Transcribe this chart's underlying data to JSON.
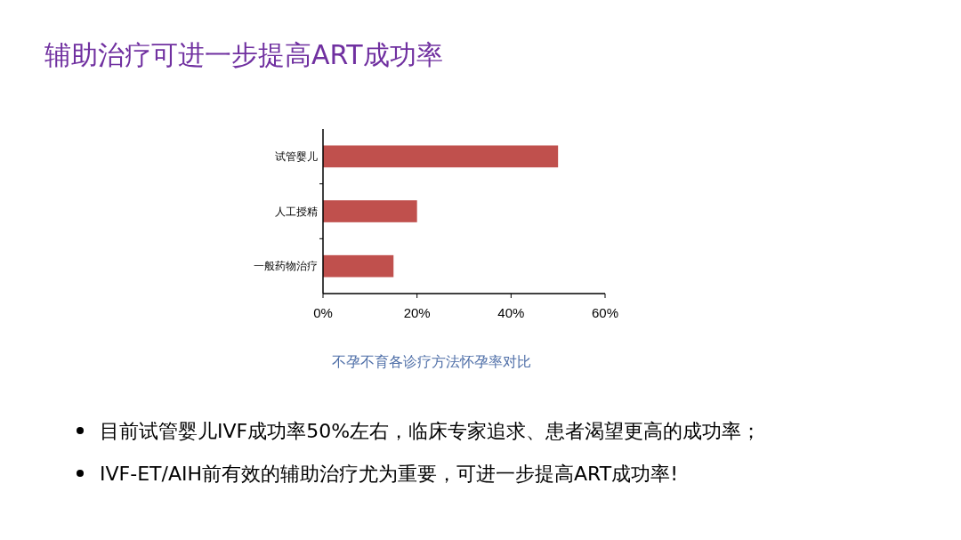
{
  "chart_data": {
    "type": "bar",
    "orientation": "horizontal",
    "title": "辅助治疗可进一步提高ART成功率",
    "categories": [
      "试管婴儿",
      "人工授精",
      "一般药物治疗"
    ],
    "values": [
      50,
      20,
      15
    ],
    "color": "#c0504d",
    "xlim": [
      0,
      60
    ],
    "xticks": [
      {
        "value": 0,
        "label": "0%"
      },
      {
        "value": 20,
        "label": "20%"
      },
      {
        "value": 40,
        "label": "40%"
      },
      {
        "value": 60,
        "label": "60%"
      }
    ],
    "grid": false,
    "annotations": [
      "不孕不育各诊疗方法怀孕率对比",
      "目前试管婴儿IVF成功率50%左右，临床专家追求、患者渴望更高的成功率；",
      "IVF-ET/AIH前有效的辅助治疗尤为重要，可进一步提高ART成功率!"
    ]
  }
}
